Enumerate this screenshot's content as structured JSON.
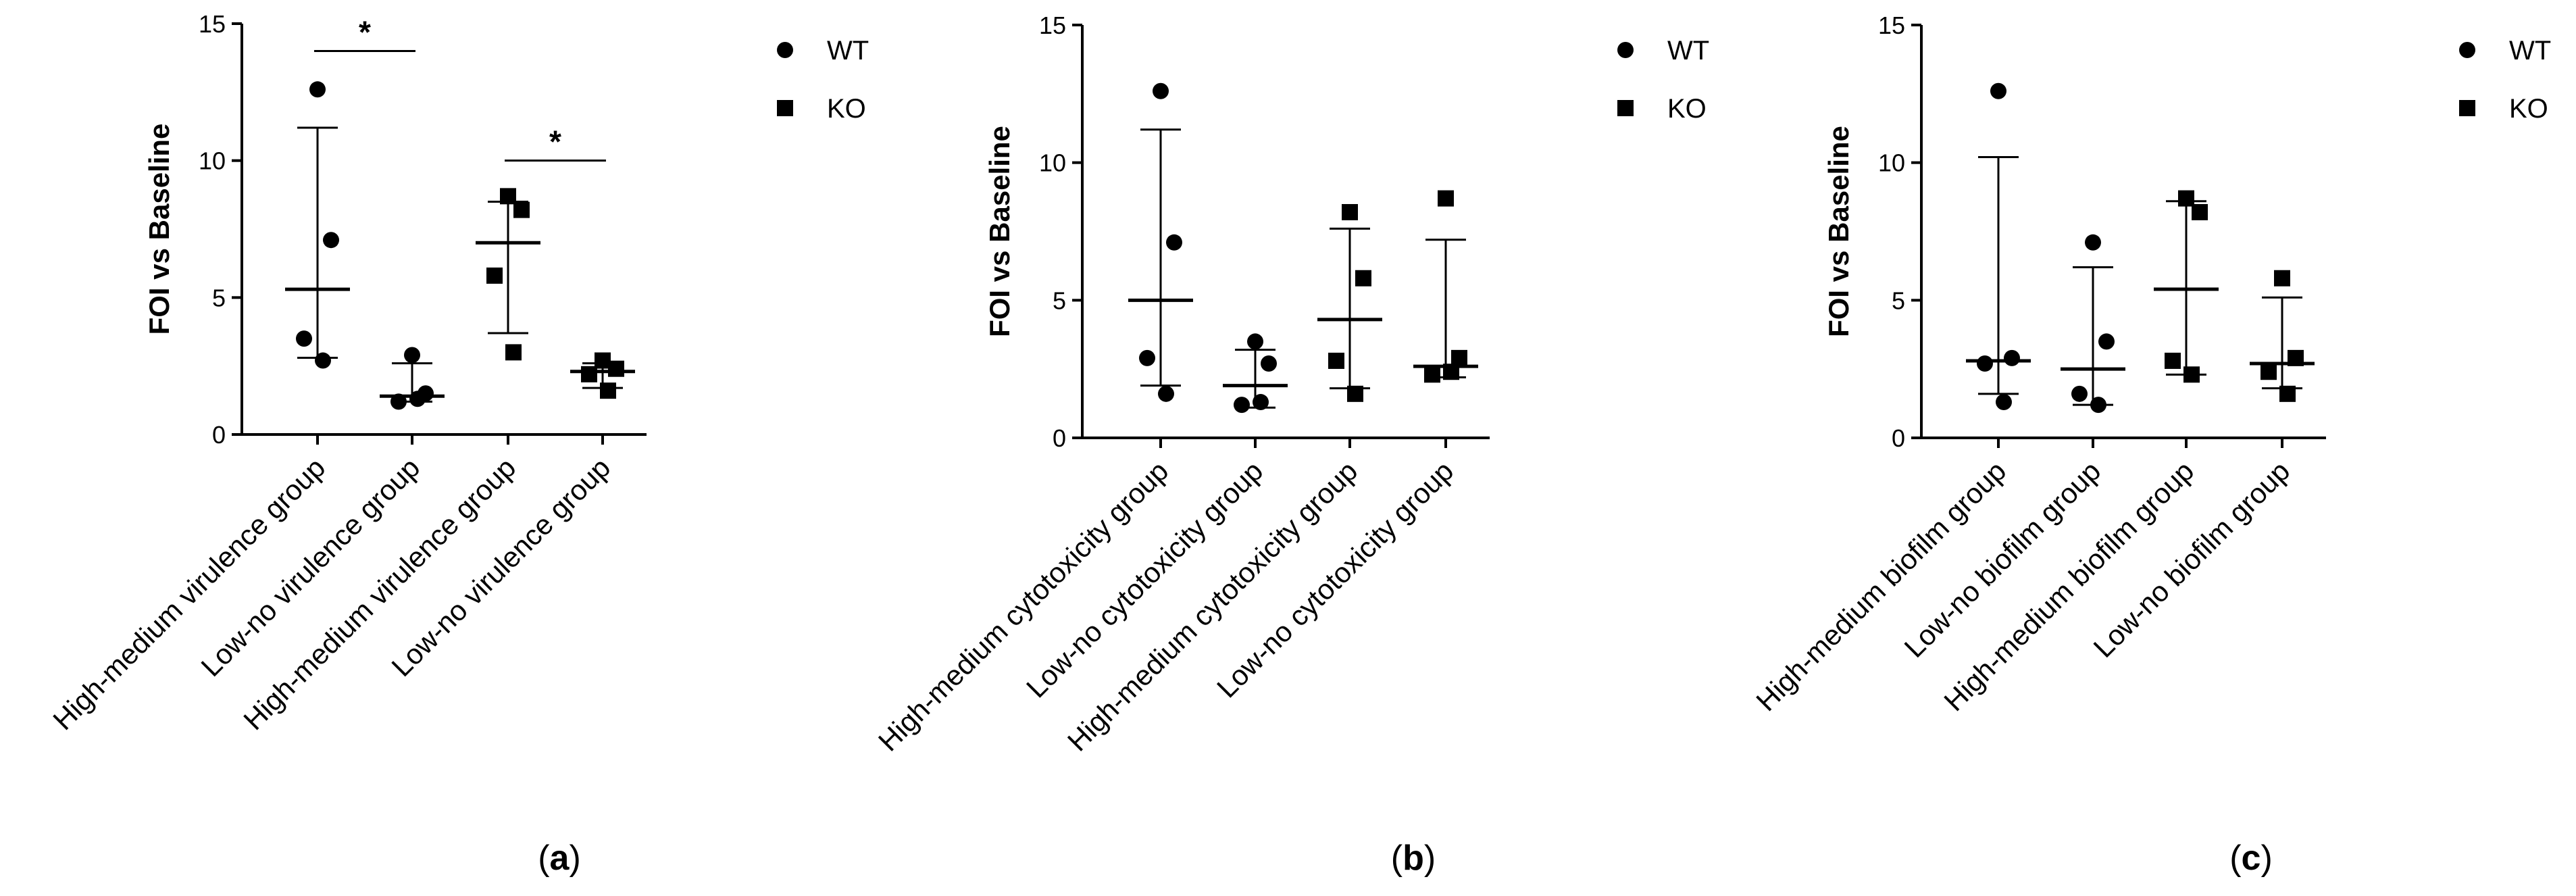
{
  "chart_data": [
    {
      "type": "scatter",
      "panel_label": "a",
      "ylabel": "FOI vs Baseline",
      "ylim": [
        0,
        15
      ],
      "yticks": [
        "0",
        "5",
        "10",
        "15"
      ],
      "categories": [
        "High-medium virulence group",
        "Low-no virulence group",
        "High-medium virulence group",
        "Low-no virulence group"
      ],
      "category_series": [
        "WT",
        "WT",
        "KO",
        "KO"
      ],
      "points": [
        [
          12.6,
          7.1,
          3.5,
          2.7
        ],
        [
          2.9,
          1.5,
          1.2,
          1.3
        ],
        [
          8.7,
          8.2,
          5.8,
          3.0
        ],
        [
          2.7,
          2.4,
          2.2,
          1.6
        ]
      ],
      "mean": [
        5.3,
        1.4,
        7.0,
        2.3
      ],
      "sd_upper": [
        11.2,
        2.6,
        8.5,
        2.6
      ],
      "sd_lower": [
        2.8,
        1.2,
        3.7,
        1.7
      ],
      "significance": [
        {
          "from": 0,
          "to": 1,
          "y": 14.0,
          "label": "*"
        },
        {
          "from": 2,
          "to": 3,
          "y": 10.0,
          "label": "*"
        }
      ],
      "legend": [
        "WT",
        "KO"
      ]
    },
    {
      "type": "scatter",
      "panel_label": "b",
      "ylabel": "FOI vs Baseline",
      "ylim": [
        0,
        15
      ],
      "yticks": [
        "0",
        "5",
        "10",
        "15"
      ],
      "categories": [
        "High-medium cytotoxicity group",
        "Low-no cytotoxicity group",
        "High-medium cytotoxicity group",
        "Low-no cytotoxicity group"
      ],
      "category_series": [
        "WT",
        "WT",
        "KO",
        "KO"
      ],
      "points": [
        [
          12.6,
          7.1,
          2.9,
          1.6
        ],
        [
          3.5,
          2.7,
          1.2,
          1.3
        ],
        [
          8.2,
          5.8,
          2.8,
          1.6
        ],
        [
          8.7,
          2.9,
          2.3,
          2.4
        ]
      ],
      "mean": [
        5.0,
        1.9,
        4.3,
        2.6
      ],
      "sd_upper": [
        11.2,
        3.2,
        7.6,
        7.2
      ],
      "sd_lower": [
        1.9,
        1.1,
        1.8,
        2.2
      ],
      "significance": [],
      "legend": [
        "WT",
        "KO"
      ]
    },
    {
      "type": "scatter",
      "panel_label": "c",
      "ylabel": "FOI vs Baseline",
      "ylim": [
        0,
        15
      ],
      "yticks": [
        "0",
        "5",
        "10",
        "15"
      ],
      "categories": [
        "High-medium biofilm group",
        "Low-no biofilm group",
        "High-medium biofilm group",
        "Low-no biofilm group"
      ],
      "category_series": [
        "WT",
        "WT",
        "KO",
        "KO"
      ],
      "points": [
        [
          12.6,
          2.9,
          2.7,
          1.3
        ],
        [
          7.1,
          3.5,
          1.6,
          1.2
        ],
        [
          8.7,
          8.2,
          2.8,
          2.3
        ],
        [
          5.8,
          2.9,
          2.4,
          1.6
        ]
      ],
      "mean": [
        2.8,
        2.5,
        5.4,
        2.7
      ],
      "sd_upper": [
        10.2,
        6.2,
        8.6,
        5.1
      ],
      "sd_lower": [
        1.6,
        1.2,
        2.3,
        1.8
      ],
      "significance": [],
      "legend": [
        "WT",
        "KO"
      ]
    }
  ]
}
